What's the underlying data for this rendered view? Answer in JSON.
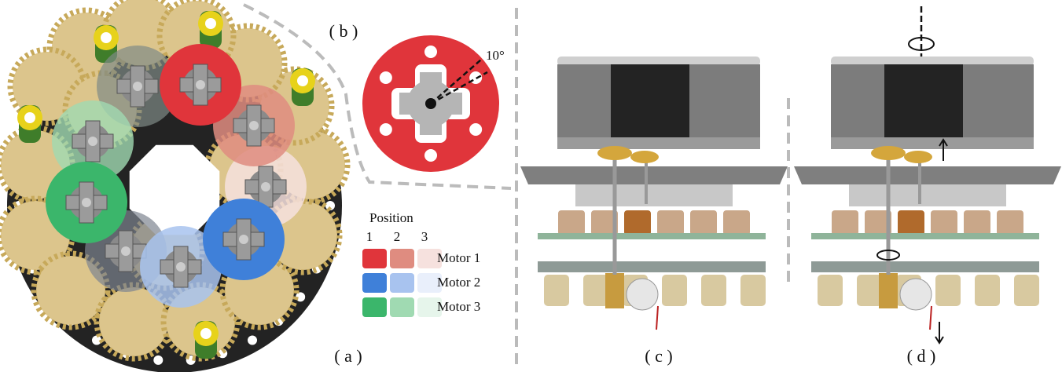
{
  "labels": {
    "a": "( a )",
    "b": "( b )",
    "c": "( c )",
    "d": "( d )"
  },
  "angle_label": "10°",
  "legend": {
    "title": "Position",
    "columns": [
      "1",
      "2",
      "3"
    ],
    "rows": [
      {
        "name": "Motor 1",
        "colors": [
          "#e0353b",
          "#df8c80",
          "#f6e1de"
        ]
      },
      {
        "name": "Motor 2",
        "colors": [
          "#3f80d9",
          "#a8c3ef",
          "#e9effb"
        ]
      },
      {
        "name": "Motor 3",
        "colors": [
          "#3bb66b",
          "#a0dab2",
          "#e6f5eb"
        ]
      }
    ]
  }
}
